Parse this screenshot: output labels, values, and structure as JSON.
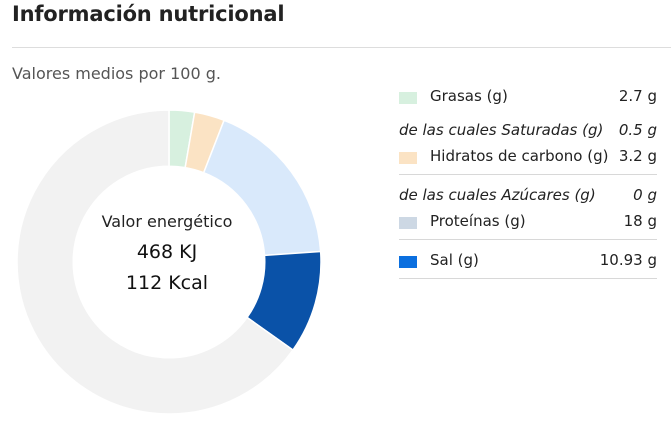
{
  "header": {
    "title": "Información nutricional"
  },
  "subtitle": "Valores medios por 100 g.",
  "center": {
    "label": "Valor energético",
    "kj": "468 KJ",
    "kcal": "112 Kcal"
  },
  "legend": {
    "grasas": {
      "label": "Grasas (g)",
      "value": "2.7 g",
      "color": "#d7f0df"
    },
    "saturadas": {
      "label": "de las cuales Saturadas (g)",
      "value": "0.5 g"
    },
    "hidratos": {
      "label": "Hidratos de carbono (g)",
      "value": "3.2 g",
      "color": "#fbe3c4"
    },
    "azucares": {
      "label": "de las cuales Azúcares (g)",
      "value": "0 g"
    },
    "proteinas": {
      "label": "Proteínas (g)",
      "value": "18 g",
      "color": "#cdd8e4"
    },
    "sal": {
      "label": "Sal (g)",
      "value": "10.93 g",
      "color": "#0b6fdf"
    }
  },
  "chart_data": {
    "type": "pie",
    "title": "",
    "labels": [
      "Grasas (g)",
      "Hidratos de carbono (g)",
      "Proteínas (g)",
      "Sal (g)",
      ""
    ],
    "values": [
      2.7,
      3.2,
      18,
      10.93,
      65.17
    ],
    "colors": [
      "#d7f0df",
      "#fbe3c4",
      "#d9e9fb",
      "#0a52a8",
      "#f2f2f2"
    ],
    "start_angle_deg": 0,
    "inner_radius_ratio": 0.63
  }
}
